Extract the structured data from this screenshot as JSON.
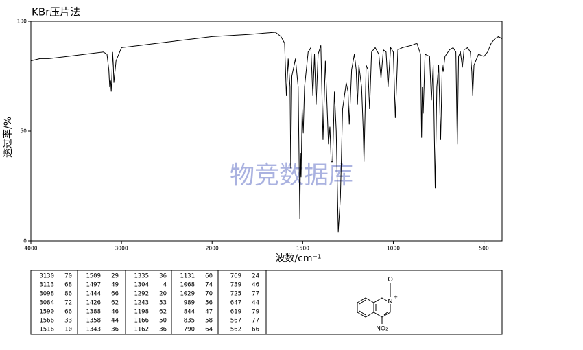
{
  "chart_data": {
    "type": "line",
    "title": "KBr压片法",
    "x_label": "波数/cm⁻¹",
    "y_label": "透过率/%",
    "watermark": "物竞数据库",
    "x_scale": "piecewise",
    "color": "#000000",
    "xlim": [
      4000,
      400
    ],
    "xticks": [
      4000,
      3000,
      2000,
      1500,
      1000,
      500
    ],
    "ylim": [
      0,
      100
    ],
    "yticks": [
      0,
      50,
      100
    ],
    "grid": false,
    "x": [
      4000,
      3900,
      3800,
      3600,
      3400,
      3200,
      3160,
      3140,
      3130,
      3120,
      3113,
      3105,
      3098,
      3090,
      3084,
      3060,
      3000,
      2800,
      2600,
      2400,
      2200,
      2000,
      1800,
      1650,
      1620,
      1600,
      1590,
      1580,
      1570,
      1566,
      1560,
      1540,
      1525,
      1516,
      1512,
      1509,
      1503,
      1497,
      1490,
      1470,
      1455,
      1444,
      1435,
      1426,
      1415,
      1400,
      1388,
      1375,
      1365,
      1358,
      1350,
      1343,
      1335,
      1325,
      1315,
      1304,
      1298,
      1292,
      1280,
      1260,
      1250,
      1243,
      1230,
      1215,
      1205,
      1198,
      1190,
      1175,
      1166,
      1162,
      1150,
      1140,
      1131,
      1120,
      1100,
      1080,
      1068,
      1055,
      1040,
      1029,
      1015,
      1000,
      989,
      975,
      950,
      900,
      870,
      850,
      844,
      840,
      835,
      825,
      800,
      790,
      780,
      769,
      760,
      750,
      739,
      730,
      725,
      715,
      690,
      670,
      655,
      647,
      640,
      630,
      619,
      610,
      590,
      575,
      567,
      562,
      555,
      530,
      500,
      480,
      460,
      440,
      420,
      400
    ],
    "values": [
      82,
      83,
      83,
      84,
      85,
      86,
      85,
      78,
      70,
      73,
      68,
      76,
      86,
      80,
      72,
      82,
      88,
      89,
      90,
      91,
      92,
      93,
      94,
      95,
      93,
      90,
      66,
      83,
      70,
      33,
      75,
      83,
      70,
      10,
      40,
      29,
      60,
      49,
      70,
      86,
      88,
      66,
      85,
      62,
      85,
      89,
      46,
      82,
      60,
      44,
      52,
      36,
      36,
      68,
      50,
      4,
      12,
      20,
      60,
      72,
      68,
      53,
      78,
      85,
      78,
      62,
      80,
      70,
      50,
      36,
      80,
      78,
      60,
      86,
      88,
      85,
      74,
      87,
      86,
      70,
      88,
      86,
      56,
      87,
      88,
      89,
      90,
      85,
      47,
      70,
      58,
      85,
      84,
      64,
      80,
      24,
      70,
      80,
      46,
      80,
      77,
      84,
      87,
      88,
      86,
      44,
      84,
      86,
      79,
      87,
      88,
      86,
      77,
      66,
      80,
      85,
      84,
      86,
      90,
      92,
      93,
      92
    ]
  },
  "peak_table": {
    "columns": [
      [
        [
          3130,
          70
        ],
        [
          3113,
          68
        ],
        [
          3098,
          86
        ],
        [
          3084,
          72
        ],
        [
          1590,
          66
        ],
        [
          1566,
          33
        ],
        [
          1516,
          10
        ]
      ],
      [
        [
          1509,
          29
        ],
        [
          1497,
          49
        ],
        [
          1444,
          66
        ],
        [
          1426,
          62
        ],
        [
          1388,
          46
        ],
        [
          1358,
          44
        ],
        [
          1343,
          36
        ]
      ],
      [
        [
          1335,
          36
        ],
        [
          1304,
          4
        ],
        [
          1292,
          20
        ],
        [
          1243,
          53
        ],
        [
          1198,
          62
        ],
        [
          1166,
          50
        ],
        [
          1162,
          36
        ]
      ],
      [
        [
          1131,
          60
        ],
        [
          1068,
          74
        ],
        [
          1029,
          70
        ],
        [
          989,
          56
        ],
        [
          844,
          47
        ],
        [
          835,
          58
        ],
        [
          790,
          64
        ]
      ],
      [
        [
          769,
          24
        ],
        [
          739,
          46
        ],
        [
          725,
          77
        ],
        [
          647,
          44
        ],
        [
          619,
          79
        ],
        [
          567,
          77
        ],
        [
          562,
          66
        ]
      ]
    ]
  },
  "structure": {
    "labels": [
      "O",
      "N",
      "+",
      "NO₂"
    ]
  }
}
